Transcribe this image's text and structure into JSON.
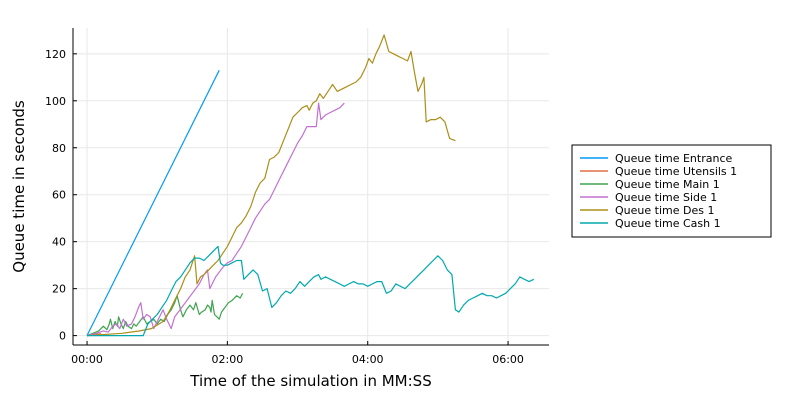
{
  "chart_data": {
    "type": "line",
    "title": "",
    "xlabel": "Time of the simulation in MM:SS",
    "ylabel": "Queue time in seconds",
    "x_unit": "seconds",
    "xlim": [
      -12,
      395
    ],
    "ylim": [
      -4,
      131
    ],
    "x_ticks": [
      {
        "value": 0,
        "label": "00:00"
      },
      {
        "value": 120,
        "label": "02:00"
      },
      {
        "value": 240,
        "label": "04:00"
      },
      {
        "value": 360,
        "label": "06:00"
      }
    ],
    "y_ticks": [
      0,
      20,
      40,
      60,
      80,
      100,
      120
    ],
    "grid": true,
    "legend_position": "right",
    "series": [
      {
        "name": "Queue time Entrance",
        "color": "#009af9",
        "points": [
          [
            0,
            0
          ],
          [
            113,
            113
          ]
        ]
      },
      {
        "name": "Queue time Utensils 1",
        "color": "#e26f46",
        "points": [
          [
            0,
            0
          ],
          [
            4,
            0.3
          ],
          [
            8,
            0.6
          ],
          [
            12,
            0.8
          ]
        ]
      },
      {
        "name": "Queue time Main 1",
        "color": "#3da44d",
        "points": [
          [
            0,
            0
          ],
          [
            5,
            1
          ],
          [
            10,
            2
          ],
          [
            14,
            4
          ],
          [
            17,
            2.5
          ],
          [
            19,
            5
          ],
          [
            20,
            7
          ],
          [
            22,
            3
          ],
          [
            24,
            6
          ],
          [
            26,
            4
          ],
          [
            27,
            8
          ],
          [
            29,
            5
          ],
          [
            31,
            3
          ],
          [
            33,
            6
          ],
          [
            35,
            4
          ],
          [
            38,
            3
          ],
          [
            40,
            5
          ],
          [
            42,
            4
          ],
          [
            45,
            6
          ],
          [
            48,
            8
          ],
          [
            51,
            5
          ],
          [
            54,
            6
          ],
          [
            57,
            7
          ],
          [
            60,
            5
          ],
          [
            63,
            7
          ],
          [
            66,
            6
          ],
          [
            69,
            9
          ],
          [
            72,
            11
          ],
          [
            75,
            14
          ],
          [
            77,
            17
          ],
          [
            80,
            11
          ],
          [
            82,
            8
          ],
          [
            85,
            11
          ],
          [
            88,
            13
          ],
          [
            91,
            11
          ],
          [
            93,
            14
          ],
          [
            96,
            9
          ],
          [
            98,
            10
          ],
          [
            101,
            11
          ],
          [
            103,
            13
          ],
          [
            105,
            12
          ],
          [
            106,
            10
          ],
          [
            107,
            15
          ],
          [
            109,
            9
          ],
          [
            111,
            8
          ],
          [
            113,
            7
          ],
          [
            115,
            10
          ],
          [
            118,
            12
          ],
          [
            121,
            14
          ],
          [
            124,
            15
          ],
          [
            128,
            17
          ],
          [
            131,
            16
          ],
          [
            133,
            18
          ]
        ]
      },
      {
        "name": "Queue time Side 1",
        "color": "#c271d2",
        "points": [
          [
            0,
            0
          ],
          [
            8,
            1
          ],
          [
            14,
            2
          ],
          [
            18,
            1.5
          ],
          [
            22,
            4
          ],
          [
            25,
            5
          ],
          [
            28,
            3
          ],
          [
            31,
            7
          ],
          [
            34,
            4
          ],
          [
            38,
            5
          ],
          [
            41,
            8
          ],
          [
            44,
            12
          ],
          [
            46,
            14
          ],
          [
            48,
            7
          ],
          [
            51,
            9
          ],
          [
            54,
            8
          ],
          [
            57,
            3
          ],
          [
            60,
            6
          ],
          [
            63,
            9
          ],
          [
            65,
            11
          ],
          [
            68,
            7
          ],
          [
            70,
            5
          ],
          [
            72,
            3
          ],
          [
            75,
            8
          ],
          [
            78,
            10
          ],
          [
            81,
            12
          ],
          [
            84,
            14
          ],
          [
            87,
            16
          ],
          [
            90,
            18
          ],
          [
            93,
            20
          ],
          [
            96,
            22
          ],
          [
            98,
            24
          ],
          [
            100,
            26
          ],
          [
            103,
            28
          ],
          [
            105,
            20
          ],
          [
            107,
            22
          ],
          [
            110,
            25
          ],
          [
            113,
            27
          ],
          [
            116,
            29
          ],
          [
            120,
            31
          ],
          [
            124,
            32
          ],
          [
            128,
            35
          ],
          [
            132,
            38
          ],
          [
            136,
            42
          ],
          [
            140,
            46
          ],
          [
            144,
            50
          ],
          [
            148,
            53
          ],
          [
            152,
            56
          ],
          [
            156,
            58
          ],
          [
            160,
            62
          ],
          [
            164,
            66
          ],
          [
            168,
            70
          ],
          [
            172,
            74
          ],
          [
            176,
            78
          ],
          [
            180,
            82
          ],
          [
            184,
            85
          ],
          [
            188,
            89
          ],
          [
            192,
            89
          ],
          [
            196,
            89
          ],
          [
            198,
            99
          ],
          [
            200,
            92
          ],
          [
            204,
            94
          ],
          [
            208,
            95
          ],
          [
            212,
            96
          ],
          [
            216,
            97
          ],
          [
            220,
            99
          ]
        ]
      },
      {
        "name": "Queue time Des 1",
        "color": "#ac8e18",
        "points": [
          [
            0,
            0
          ],
          [
            30,
            1
          ],
          [
            45,
            2
          ],
          [
            55,
            3
          ],
          [
            65,
            6
          ],
          [
            70,
            10
          ],
          [
            75,
            15
          ],
          [
            80,
            20
          ],
          [
            84,
            25
          ],
          [
            88,
            28
          ],
          [
            92,
            34
          ],
          [
            94,
            22
          ],
          [
            97,
            25
          ],
          [
            100,
            26
          ],
          [
            104,
            28
          ],
          [
            108,
            30
          ],
          [
            112,
            32
          ],
          [
            116,
            35
          ],
          [
            120,
            38
          ],
          [
            124,
            42
          ],
          [
            128,
            46
          ],
          [
            132,
            48
          ],
          [
            136,
            51
          ],
          [
            140,
            55
          ],
          [
            144,
            61
          ],
          [
            148,
            65
          ],
          [
            152,
            67
          ],
          [
            156,
            75
          ],
          [
            160,
            76
          ],
          [
            164,
            78
          ],
          [
            168,
            83
          ],
          [
            172,
            88
          ],
          [
            176,
            93
          ],
          [
            180,
            95
          ],
          [
            184,
            97
          ],
          [
            188,
            98
          ],
          [
            190,
            96
          ],
          [
            193,
            99
          ],
          [
            196,
            100
          ],
          [
            199,
            103
          ],
          [
            202,
            101
          ],
          [
            206,
            104
          ],
          [
            210,
            107
          ],
          [
            214,
            104
          ],
          [
            218,
            105
          ],
          [
            222,
            106
          ],
          [
            226,
            107
          ],
          [
            230,
            108
          ],
          [
            234,
            110
          ],
          [
            238,
            114
          ],
          [
            241,
            118
          ],
          [
            244,
            116
          ],
          [
            247,
            120
          ],
          [
            250,
            123
          ],
          [
            254,
            128
          ],
          [
            258,
            121
          ],
          [
            262,
            120
          ],
          [
            266,
            119
          ],
          [
            270,
            118
          ],
          [
            274,
            117
          ],
          [
            277,
            121
          ],
          [
            280,
            112
          ],
          [
            283,
            104
          ],
          [
            286,
            107
          ],
          [
            288,
            110
          ],
          [
            290,
            91
          ],
          [
            294,
            92
          ],
          [
            298,
            92
          ],
          [
            302,
            93
          ],
          [
            306,
            91
          ],
          [
            310,
            84
          ],
          [
            315,
            83
          ]
        ]
      },
      {
        "name": "Queue time Cash 1",
        "color": "#00a9ad",
        "points": [
          [
            0,
            0
          ],
          [
            48,
            0
          ],
          [
            52,
            5
          ],
          [
            56,
            7
          ],
          [
            60,
            9
          ],
          [
            64,
            12
          ],
          [
            68,
            15
          ],
          [
            72,
            19
          ],
          [
            76,
            23
          ],
          [
            80,
            25
          ],
          [
            84,
            28
          ],
          [
            88,
            31
          ],
          [
            92,
            33
          ],
          [
            96,
            33
          ],
          [
            100,
            32
          ],
          [
            104,
            34
          ],
          [
            108,
            36
          ],
          [
            112,
            38
          ],
          [
            114,
            31
          ],
          [
            116,
            30
          ],
          [
            120,
            30
          ],
          [
            124,
            31
          ],
          [
            128,
            32
          ],
          [
            132,
            32
          ],
          [
            134,
            24
          ],
          [
            138,
            26
          ],
          [
            142,
            28
          ],
          [
            146,
            26
          ],
          [
            150,
            19
          ],
          [
            154,
            20
          ],
          [
            158,
            12
          ],
          [
            162,
            14
          ],
          [
            166,
            17
          ],
          [
            170,
            19
          ],
          [
            174,
            18
          ],
          [
            178,
            20
          ],
          [
            182,
            23
          ],
          [
            186,
            21
          ],
          [
            190,
            23
          ],
          [
            194,
            25
          ],
          [
            198,
            26
          ],
          [
            200,
            24
          ],
          [
            204,
            25
          ],
          [
            208,
            24
          ],
          [
            212,
            23
          ],
          [
            216,
            22
          ],
          [
            220,
            21
          ],
          [
            224,
            22
          ],
          [
            228,
            23
          ],
          [
            232,
            22
          ],
          [
            236,
            22
          ],
          [
            240,
            21
          ],
          [
            244,
            22
          ],
          [
            248,
            23
          ],
          [
            252,
            23
          ],
          [
            256,
            18
          ],
          [
            260,
            19
          ],
          [
            264,
            22
          ],
          [
            268,
            21
          ],
          [
            272,
            20
          ],
          [
            276,
            22
          ],
          [
            280,
            24
          ],
          [
            284,
            26
          ],
          [
            288,
            28
          ],
          [
            292,
            30
          ],
          [
            296,
            32
          ],
          [
            300,
            34
          ],
          [
            304,
            32
          ],
          [
            308,
            28
          ],
          [
            312,
            26
          ],
          [
            315,
            11
          ],
          [
            318,
            10
          ],
          [
            322,
            13
          ],
          [
            326,
            15
          ],
          [
            330,
            16
          ],
          [
            334,
            17
          ],
          [
            338,
            18
          ],
          [
            342,
            17
          ],
          [
            346,
            17
          ],
          [
            350,
            16
          ],
          [
            354,
            17
          ],
          [
            358,
            18
          ],
          [
            362,
            20
          ],
          [
            366,
            22
          ],
          [
            370,
            25
          ],
          [
            374,
            24
          ],
          [
            378,
            23
          ],
          [
            382,
            24
          ]
        ]
      }
    ]
  }
}
